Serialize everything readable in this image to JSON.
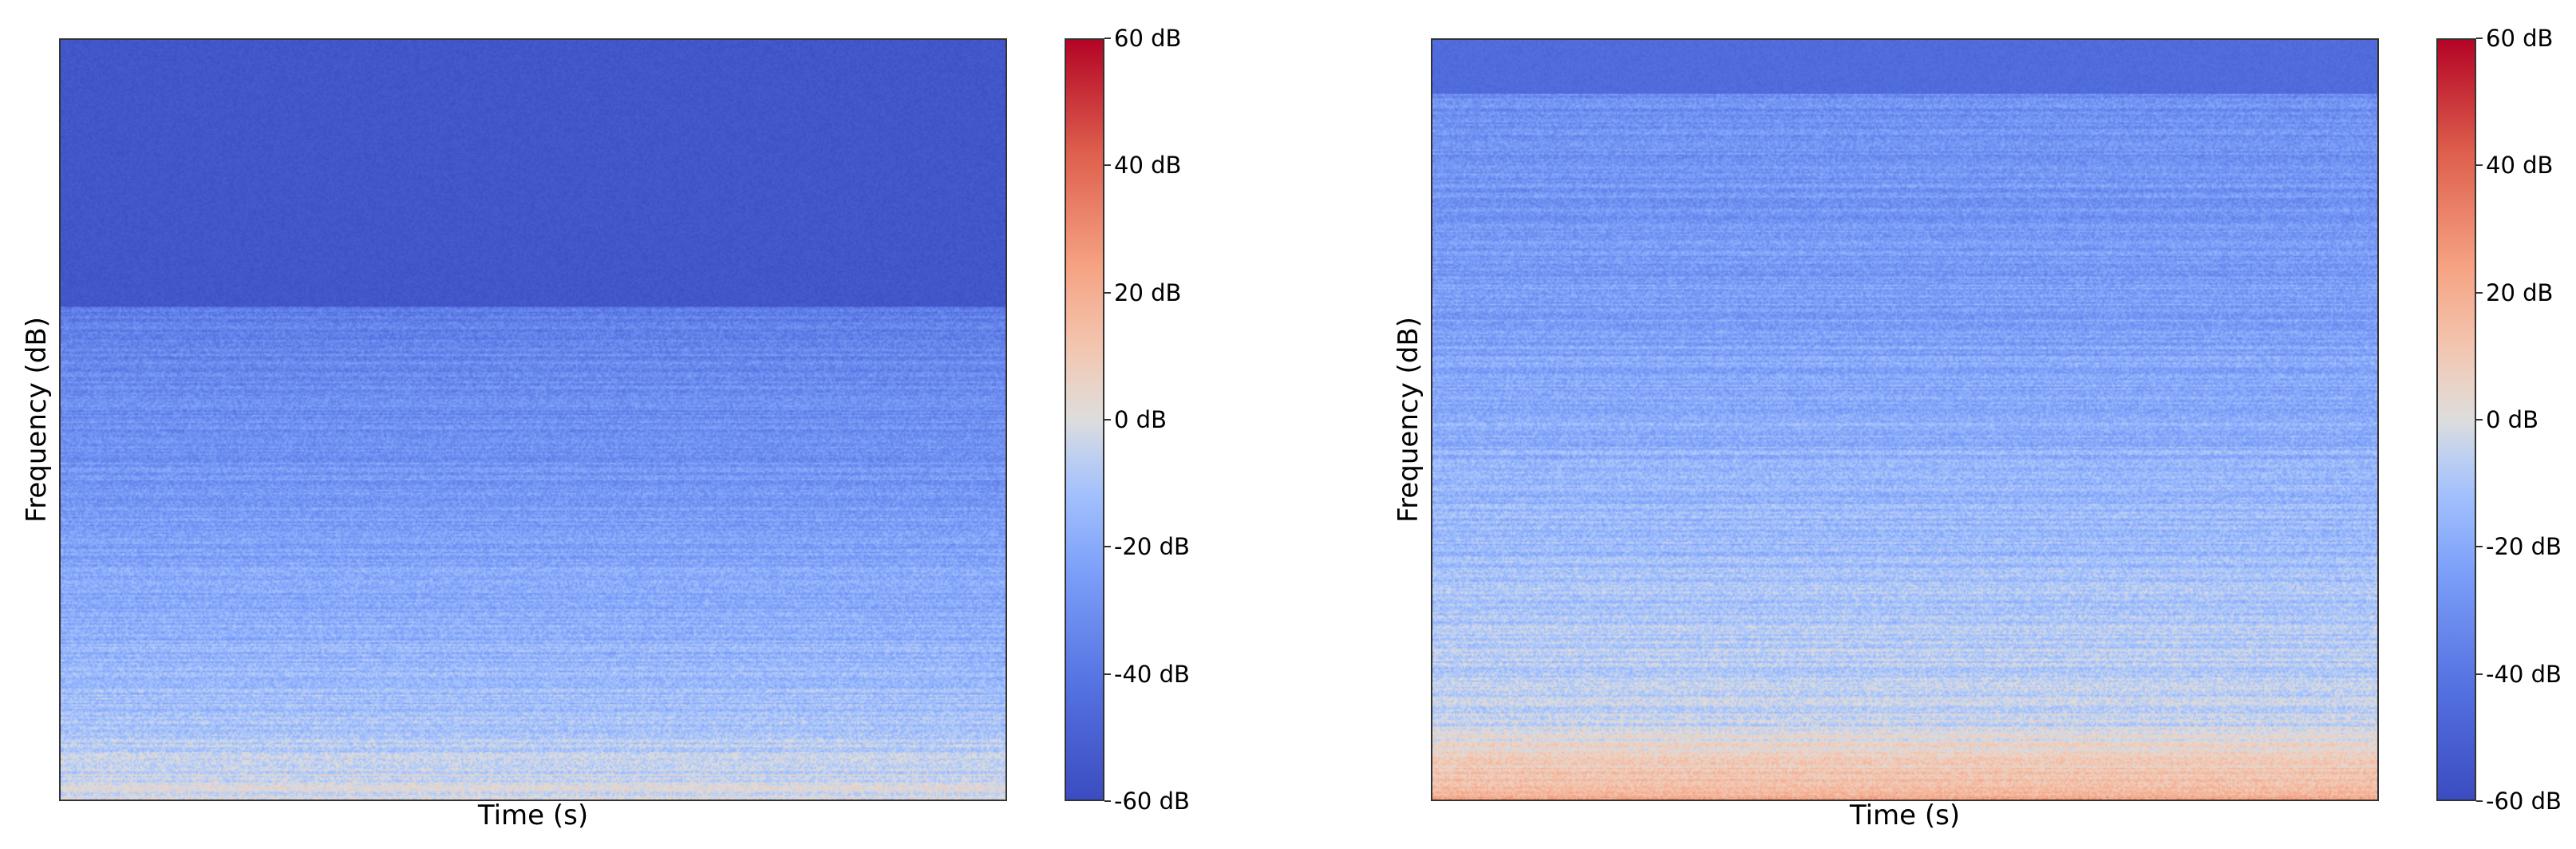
{
  "colors": {
    "colormap": "coolwarm",
    "low": "#3b4cc0",
    "mid": "#dddddd",
    "high": "#b40426"
  },
  "chart_data": [
    {
      "type": "heatmap",
      "kind": "spectrogram",
      "title": "",
      "xlabel": "Time (s)",
      "ylabel": "Frequency (dB)",
      "colorbar": {
        "range": [
          -60,
          60
        ],
        "ticks": [
          "60 dB",
          "40 dB",
          "20 dB",
          "0 dB",
          "-20 dB",
          "-40 dB",
          "-60 dB"
        ],
        "tick_values": [
          60,
          40,
          20,
          0,
          -20,
          -40,
          -60
        ]
      },
      "description_levels": {
        "top_band_db": -55,
        "upper_cutoff_fraction": 0.35,
        "body_db_range": [
          -35,
          -5
        ],
        "bottom_db": 0
      }
    },
    {
      "type": "heatmap",
      "kind": "spectrogram",
      "title": "",
      "xlabel": "Time (s)",
      "ylabel": "Frequency (dB)",
      "colorbar": {
        "range": [
          -60,
          60
        ],
        "ticks": [
          "60 dB",
          "40 dB",
          "20 dB",
          "0 dB",
          "-20 dB",
          "-40 dB",
          "-60 dB"
        ],
        "tick_values": [
          60,
          40,
          20,
          0,
          -20,
          -40,
          -60
        ]
      },
      "description_levels": {
        "top_band_db": -45,
        "upper_cutoff_fraction": 0.07,
        "body_db_range": [
          -30,
          0
        ],
        "bottom_db": 20
      }
    }
  ]
}
